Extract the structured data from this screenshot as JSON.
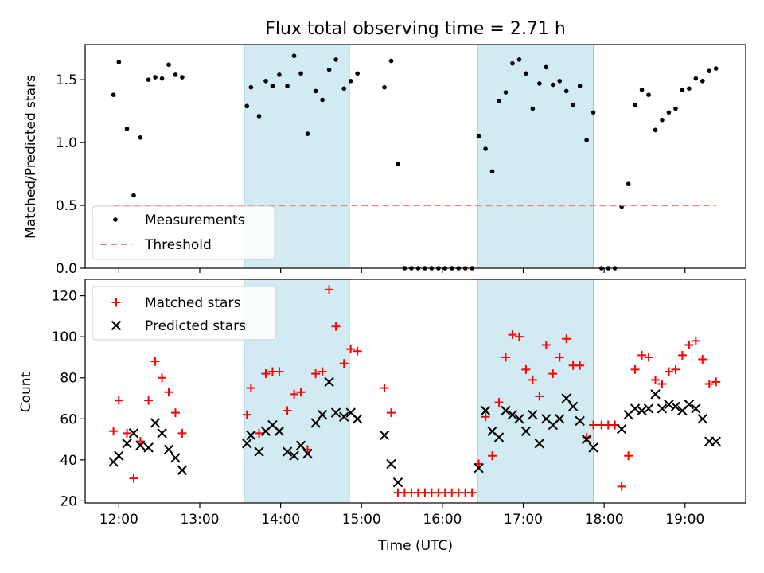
{
  "chart_data": [
    {
      "type": "scatter",
      "title": "Flux total observing time = 2.71 h",
      "xlabel": "",
      "ylabel": "Matched/Predicted stars",
      "ylim": [
        0,
        1.78
      ],
      "yticks": [
        "0.0",
        "0.5",
        "1.0",
        "1.5"
      ],
      "ytick_values": [
        0,
        0.5,
        1.0,
        1.5
      ],
      "shaded_intervals": [
        [
          "13:33",
          "14:51"
        ],
        [
          "16:26",
          "17:52"
        ]
      ],
      "legend_location": "lower-left",
      "series": [
        {
          "name": "Measurements",
          "marker": "dot",
          "color": "#000000",
          "points": [
            [
              "11:56",
              1.38
            ],
            [
              "12:00",
              1.64
            ],
            [
              "12:06",
              1.11
            ],
            [
              "12:11",
              0.58
            ],
            [
              "12:16",
              1.04
            ],
            [
              "12:22",
              1.5
            ],
            [
              "12:27",
              1.52
            ],
            [
              "12:32",
              1.51
            ],
            [
              "12:37",
              1.62
            ],
            [
              "12:42",
              1.54
            ],
            [
              "12:47",
              1.52
            ],
            [
              "13:35",
              1.29
            ],
            [
              "13:38",
              1.44
            ],
            [
              "13:44",
              1.21
            ],
            [
              "13:49",
              1.49
            ],
            [
              "13:54",
              1.45
            ],
            [
              "13:59",
              1.54
            ],
            [
              "14:05",
              1.45
            ],
            [
              "14:10",
              1.69
            ],
            [
              "14:15",
              1.55
            ],
            [
              "14:20",
              1.07
            ],
            [
              "14:26",
              1.41
            ],
            [
              "14:31",
              1.34
            ],
            [
              "14:36",
              1.58
            ],
            [
              "14:41",
              1.66
            ],
            [
              "14:47",
              1.43
            ],
            [
              "14:52",
              1.49
            ],
            [
              "14:57",
              1.55
            ],
            [
              "15:17",
              1.44
            ],
            [
              "15:22",
              1.65
            ],
            [
              "15:27",
              0.83
            ],
            [
              "15:32",
              0
            ],
            [
              "15:37",
              0
            ],
            [
              "15:42",
              0
            ],
            [
              "15:47",
              0
            ],
            [
              "15:52",
              0
            ],
            [
              "15:57",
              0
            ],
            [
              "16:02",
              0
            ],
            [
              "16:07",
              0
            ],
            [
              "16:12",
              0
            ],
            [
              "16:17",
              0
            ],
            [
              "16:22",
              0
            ],
            [
              "16:27",
              1.05
            ],
            [
              "16:32",
              0.95
            ],
            [
              "16:37",
              0.77
            ],
            [
              "16:42",
              1.33
            ],
            [
              "16:47",
              1.4
            ],
            [
              "16:52",
              1.63
            ],
            [
              "16:57",
              1.66
            ],
            [
              "17:02",
              1.55
            ],
            [
              "17:07",
              1.27
            ],
            [
              "17:12",
              1.47
            ],
            [
              "17:17",
              1.6
            ],
            [
              "17:22",
              1.46
            ],
            [
              "17:27",
              1.49
            ],
            [
              "17:32",
              1.41
            ],
            [
              "17:37",
              1.3
            ],
            [
              "17:42",
              1.45
            ],
            [
              "17:47",
              1.02
            ],
            [
              "17:52",
              1.24
            ],
            [
              "17:58",
              0
            ],
            [
              "18:03",
              0
            ],
            [
              "18:08",
              0
            ],
            [
              "18:13",
              0.49
            ],
            [
              "18:18",
              0.67
            ],
            [
              "18:23",
              1.3
            ],
            [
              "18:28",
              1.42
            ],
            [
              "18:33",
              1.38
            ],
            [
              "18:38",
              1.1
            ],
            [
              "18:43",
              1.18
            ],
            [
              "18:48",
              1.24
            ],
            [
              "18:53",
              1.27
            ],
            [
              "18:58",
              1.42
            ],
            [
              "19:03",
              1.43
            ],
            [
              "19:08",
              1.51
            ],
            [
              "19:13",
              1.49
            ],
            [
              "19:18",
              1.57
            ],
            [
              "19:23",
              1.59
            ]
          ]
        },
        {
          "name": "Threshold",
          "type": "line",
          "style": "dashed",
          "color": "#f08080",
          "points": [
            [
              "11:56",
              0.5
            ],
            [
              "19:23",
              0.5
            ]
          ]
        }
      ]
    },
    {
      "type": "scatter",
      "title": "",
      "xlabel": "Time (UTC)",
      "ylabel": "Count",
      "ylim": [
        19,
        128
      ],
      "yticks": [
        "20",
        "40",
        "60",
        "80",
        "100",
        "120"
      ],
      "ytick_values": [
        20,
        40,
        60,
        80,
        100,
        120
      ],
      "xticks": [
        "12:00",
        "13:00",
        "14:00",
        "15:00",
        "16:00",
        "17:00",
        "18:00",
        "19:00"
      ],
      "xlim": [
        "11:35",
        "19:45"
      ],
      "shaded_intervals": [
        [
          "13:33",
          "14:51"
        ],
        [
          "16:26",
          "17:52"
        ]
      ],
      "legend_location": "upper-left",
      "series": [
        {
          "name": "Matched stars",
          "marker": "plus",
          "color": "#ff0000",
          "points": [
            [
              "11:56",
              54
            ],
            [
              "12:00",
              69
            ],
            [
              "12:06",
              53
            ],
            [
              "12:11",
              31
            ],
            [
              "12:16",
              49
            ],
            [
              "12:22",
              69
            ],
            [
              "12:27",
              88
            ],
            [
              "12:32",
              80
            ],
            [
              "12:37",
              73
            ],
            [
              "12:42",
              63
            ],
            [
              "12:47",
              53
            ],
            [
              "13:35",
              62
            ],
            [
              "13:38",
              75
            ],
            [
              "13:44",
              53
            ],
            [
              "13:49",
              82
            ],
            [
              "13:54",
              83
            ],
            [
              "13:59",
              83
            ],
            [
              "14:05",
              64
            ],
            [
              "14:10",
              72
            ],
            [
              "14:15",
              73
            ],
            [
              "14:20",
              45
            ],
            [
              "14:26",
              82
            ],
            [
              "14:31",
              83
            ],
            [
              "14:36",
              123
            ],
            [
              "14:41",
              105
            ],
            [
              "14:47",
              87
            ],
            [
              "14:52",
              94
            ],
            [
              "14:57",
              93
            ],
            [
              "15:17",
              75
            ],
            [
              "15:22",
              63
            ],
            [
              "15:27",
              24
            ],
            [
              "15:32",
              24
            ],
            [
              "15:37",
              24
            ],
            [
              "15:42",
              24
            ],
            [
              "15:47",
              24
            ],
            [
              "15:52",
              24
            ],
            [
              "15:57",
              24
            ],
            [
              "16:02",
              24
            ],
            [
              "16:07",
              24
            ],
            [
              "16:12",
              24
            ],
            [
              "16:17",
              24
            ],
            [
              "16:22",
              24
            ],
            [
              "16:27",
              38
            ],
            [
              "16:32",
              61
            ],
            [
              "16:37",
              42
            ],
            [
              "16:42",
              68
            ],
            [
              "16:47",
              90
            ],
            [
              "16:52",
              101
            ],
            [
              "16:57",
              100
            ],
            [
              "17:02",
              84
            ],
            [
              "17:07",
              79
            ],
            [
              "17:12",
              71
            ],
            [
              "17:17",
              96
            ],
            [
              "17:22",
              82
            ],
            [
              "17:27",
              90
            ],
            [
              "17:32",
              99
            ],
            [
              "17:37",
              86
            ],
            [
              "17:42",
              86
            ],
            [
              "17:47",
              51
            ],
            [
              "17:52",
              57
            ],
            [
              "17:58",
              57
            ],
            [
              "18:03",
              57
            ],
            [
              "18:08",
              57
            ],
            [
              "18:13",
              27
            ],
            [
              "18:18",
              42
            ],
            [
              "18:23",
              84
            ],
            [
              "18:28",
              91
            ],
            [
              "18:33",
              90
            ],
            [
              "18:38",
              79
            ],
            [
              "18:43",
              77
            ],
            [
              "18:48",
              83
            ],
            [
              "18:53",
              84
            ],
            [
              "18:58",
              91
            ],
            [
              "19:03",
              96
            ],
            [
              "19:08",
              98
            ],
            [
              "19:13",
              89
            ],
            [
              "19:18",
              77
            ],
            [
              "19:23",
              78
            ]
          ]
        },
        {
          "name": "Predicted stars",
          "marker": "x",
          "color": "#000000",
          "points": [
            [
              "11:56",
              39
            ],
            [
              "12:00",
              42
            ],
            [
              "12:06",
              48
            ],
            [
              "12:11",
              53
            ],
            [
              "12:16",
              47
            ],
            [
              "12:22",
              46
            ],
            [
              "12:27",
              58
            ],
            [
              "12:32",
              53
            ],
            [
              "12:37",
              45
            ],
            [
              "12:42",
              41
            ],
            [
              "12:47",
              35
            ],
            [
              "13:35",
              48
            ],
            [
              "13:38",
              52
            ],
            [
              "13:44",
              44
            ],
            [
              "13:49",
              54
            ],
            [
              "13:54",
              57
            ],
            [
              "13:59",
              54
            ],
            [
              "14:05",
              44
            ],
            [
              "14:10",
              42
            ],
            [
              "14:15",
              47
            ],
            [
              "14:20",
              43
            ],
            [
              "14:26",
              58
            ],
            [
              "14:31",
              62
            ],
            [
              "14:36",
              78
            ],
            [
              "14:41",
              63
            ],
            [
              "14:47",
              61
            ],
            [
              "14:52",
              63
            ],
            [
              "14:57",
              60
            ],
            [
              "15:17",
              52
            ],
            [
              "15:22",
              38
            ],
            [
              "15:27",
              29
            ],
            [
              "16:27",
              36
            ],
            [
              "16:32",
              64
            ],
            [
              "16:37",
              54
            ],
            [
              "16:42",
              51
            ],
            [
              "16:47",
              64
            ],
            [
              "16:52",
              62
            ],
            [
              "16:57",
              60
            ],
            [
              "17:02",
              54
            ],
            [
              "17:07",
              62
            ],
            [
              "17:12",
              48
            ],
            [
              "17:17",
              60
            ],
            [
              "17:22",
              57
            ],
            [
              "17:27",
              60
            ],
            [
              "17:32",
              70
            ],
            [
              "17:37",
              66
            ],
            [
              "17:42",
              59
            ],
            [
              "17:47",
              50
            ],
            [
              "17:52",
              46
            ],
            [
              "18:13",
              55
            ],
            [
              "18:18",
              62
            ],
            [
              "18:23",
              65
            ],
            [
              "18:28",
              64
            ],
            [
              "18:33",
              65
            ],
            [
              "18:38",
              72
            ],
            [
              "18:43",
              65
            ],
            [
              "18:48",
              67
            ],
            [
              "18:53",
              66
            ],
            [
              "18:58",
              64
            ],
            [
              "19:03",
              67
            ],
            [
              "19:08",
              65
            ],
            [
              "19:13",
              60
            ],
            [
              "19:18",
              49
            ],
            [
              "19:23",
              49
            ]
          ]
        }
      ]
    }
  ],
  "colors": {
    "shade_fill": "#add8e6",
    "shade_edge": "#8fc9d6",
    "matched": "#ff0000",
    "predicted": "#000000",
    "measurement": "#000000",
    "threshold": "#f08080"
  }
}
